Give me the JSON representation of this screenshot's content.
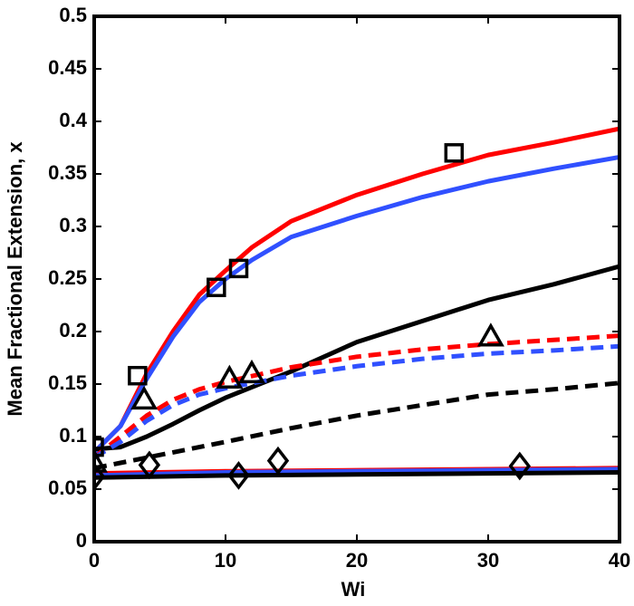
{
  "chart_data": {
    "type": "line",
    "xlabel": "Wi",
    "ylabel": "Mean Fractional Extension, x",
    "xlim": [
      0,
      40
    ],
    "ylim": [
      0,
      0.5
    ],
    "xticks": [
      0,
      10,
      20,
      30,
      40
    ],
    "yticks": [
      0,
      0.05,
      0.1,
      0.15,
      0.2,
      0.25,
      0.3,
      0.35,
      0.4,
      0.45,
      0.5
    ],
    "series": [
      {
        "color": "#ff0000",
        "dash": "solid",
        "x": [
          0,
          2,
          4,
          6,
          8,
          10,
          12,
          15,
          20,
          25,
          30,
          35,
          40
        ],
        "values": [
          0.085,
          0.11,
          0.16,
          0.2,
          0.235,
          0.258,
          0.28,
          0.305,
          0.33,
          0.35,
          0.368,
          0.38,
          0.393
        ]
      },
      {
        "color": "#3050ff",
        "dash": "solid",
        "x": [
          0,
          2,
          4,
          6,
          8,
          10,
          12,
          15,
          20,
          25,
          30,
          35,
          40
        ],
        "values": [
          0.085,
          0.11,
          0.155,
          0.195,
          0.228,
          0.25,
          0.268,
          0.29,
          0.31,
          0.328,
          0.343,
          0.355,
          0.366
        ]
      },
      {
        "color": "#000000",
        "dash": "solid",
        "x": [
          0,
          2,
          4,
          6,
          8,
          10,
          15,
          20,
          25,
          30,
          35,
          40
        ],
        "values": [
          0.088,
          0.09,
          0.1,
          0.112,
          0.125,
          0.137,
          0.162,
          0.19,
          0.21,
          0.23,
          0.245,
          0.262
        ]
      },
      {
        "color": "#ff0000",
        "dash": "dashed",
        "x": [
          0,
          2,
          4,
          6,
          8,
          10,
          15,
          20,
          25,
          30,
          35,
          40
        ],
        "values": [
          0.08,
          0.1,
          0.12,
          0.135,
          0.145,
          0.152,
          0.166,
          0.176,
          0.183,
          0.188,
          0.192,
          0.196
        ]
      },
      {
        "color": "#3050ff",
        "dash": "dashed",
        "x": [
          0,
          2,
          4,
          6,
          8,
          10,
          15,
          20,
          25,
          30,
          35,
          40
        ],
        "values": [
          0.08,
          0.095,
          0.115,
          0.13,
          0.14,
          0.146,
          0.158,
          0.167,
          0.174,
          0.179,
          0.182,
          0.186
        ]
      },
      {
        "color": "#000000",
        "dash": "dashed",
        "x": [
          0,
          2,
          4,
          6,
          10,
          15,
          20,
          25,
          30,
          35,
          40
        ],
        "values": [
          0.07,
          0.075,
          0.08,
          0.085,
          0.095,
          0.108,
          0.12,
          0.13,
          0.14,
          0.145,
          0.151
        ]
      },
      {
        "color": "#ff0000",
        "dash": "solid",
        "x": [
          0,
          10,
          20,
          30,
          40
        ],
        "values": [
          0.065,
          0.067,
          0.068,
          0.069,
          0.07
        ]
      },
      {
        "color": "#3050ff",
        "dash": "solid",
        "x": [
          0,
          10,
          20,
          30,
          40
        ],
        "values": [
          0.063,
          0.066,
          0.067,
          0.068,
          0.069
        ]
      },
      {
        "color": "#000000",
        "dash": "solid",
        "x": [
          0,
          10,
          20,
          30,
          40
        ],
        "values": [
          0.061,
          0.063,
          0.064,
          0.065,
          0.066
        ]
      },
      {
        "marker": "square",
        "color": "#000000",
        "x": [
          0,
          3.3,
          9.3,
          11,
          27.4
        ],
        "values": [
          0.09,
          0.158,
          0.242,
          0.26,
          0.37
        ]
      },
      {
        "marker": "triangle",
        "color": "#000000",
        "x": [
          0,
          3.8,
          10.3,
          12,
          30.2
        ],
        "values": [
          0.075,
          0.135,
          0.155,
          0.16,
          0.195
        ]
      },
      {
        "marker": "diamond",
        "color": "#000000",
        "x": [
          0,
          4.2,
          11,
          14,
          32.4
        ],
        "values": [
          0.062,
          0.073,
          0.063,
          0.077,
          0.072
        ]
      }
    ]
  }
}
